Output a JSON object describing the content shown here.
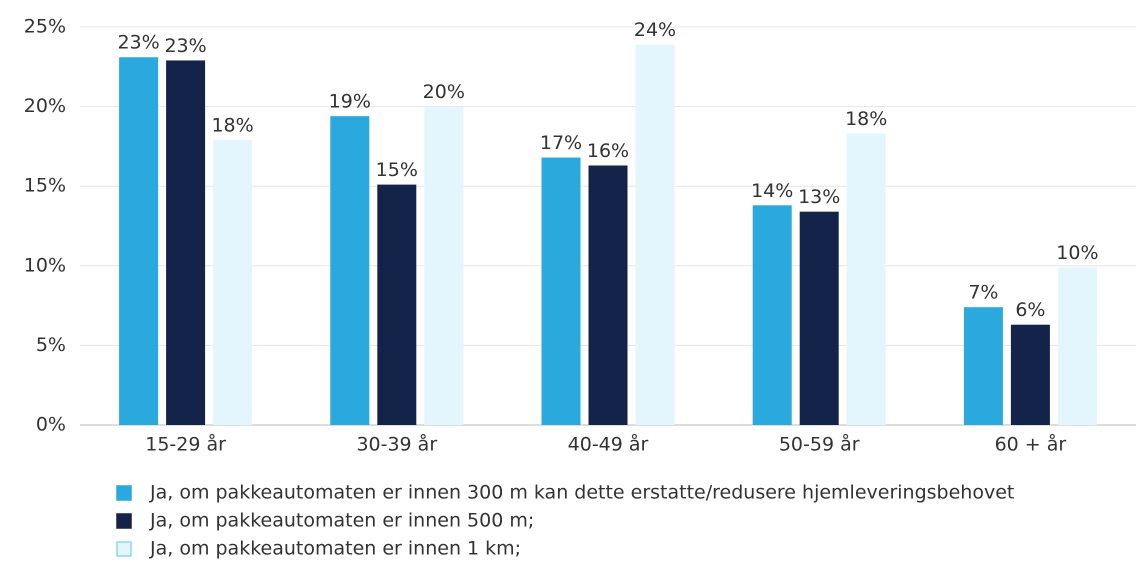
{
  "chart_data": {
    "type": "bar",
    "categories": [
      "15-29 år",
      "30-39 år",
      "40-49 år",
      "50-59 år",
      "60 + år"
    ],
    "series": [
      {
        "name": "Ja, om pakkeautomaten er innen 300 m kan dette erstatte/redusere hjemleveringsbehovet",
        "color": "#29a9dd",
        "values": [
          23.1,
          19.4,
          16.8,
          13.8,
          7.4
        ],
        "value_labels": [
          "23%",
          "19%",
          "17%",
          "14%",
          "7%"
        ]
      },
      {
        "name": "Ja, om pakkeautomaten er innen 500 m;",
        "color": "#13234a",
        "values": [
          22.9,
          15.1,
          16.3,
          13.4,
          6.3
        ],
        "value_labels": [
          "23%",
          "15%",
          "16%",
          "13%",
          "6%"
        ]
      },
      {
        "name": "Ja, om pakkeautomaten er innen 1 km;",
        "color": "#e3f6fd",
        "values": [
          17.9,
          20.0,
          23.9,
          18.3,
          9.9
        ],
        "value_labels": [
          "18%",
          "20%",
          "24%",
          "18%",
          "10%"
        ]
      }
    ],
    "ylim": [
      0,
      25
    ],
    "yticks": [
      {
        "value": 0,
        "label": "0%"
      },
      {
        "value": 5,
        "label": "5%"
      },
      {
        "value": 10,
        "label": "10%"
      },
      {
        "value": 15,
        "label": "15%"
      },
      {
        "value": 20,
        "label": "20%"
      },
      {
        "value": 25,
        "label": "25%"
      }
    ],
    "grid": true,
    "legend": "bottom"
  }
}
